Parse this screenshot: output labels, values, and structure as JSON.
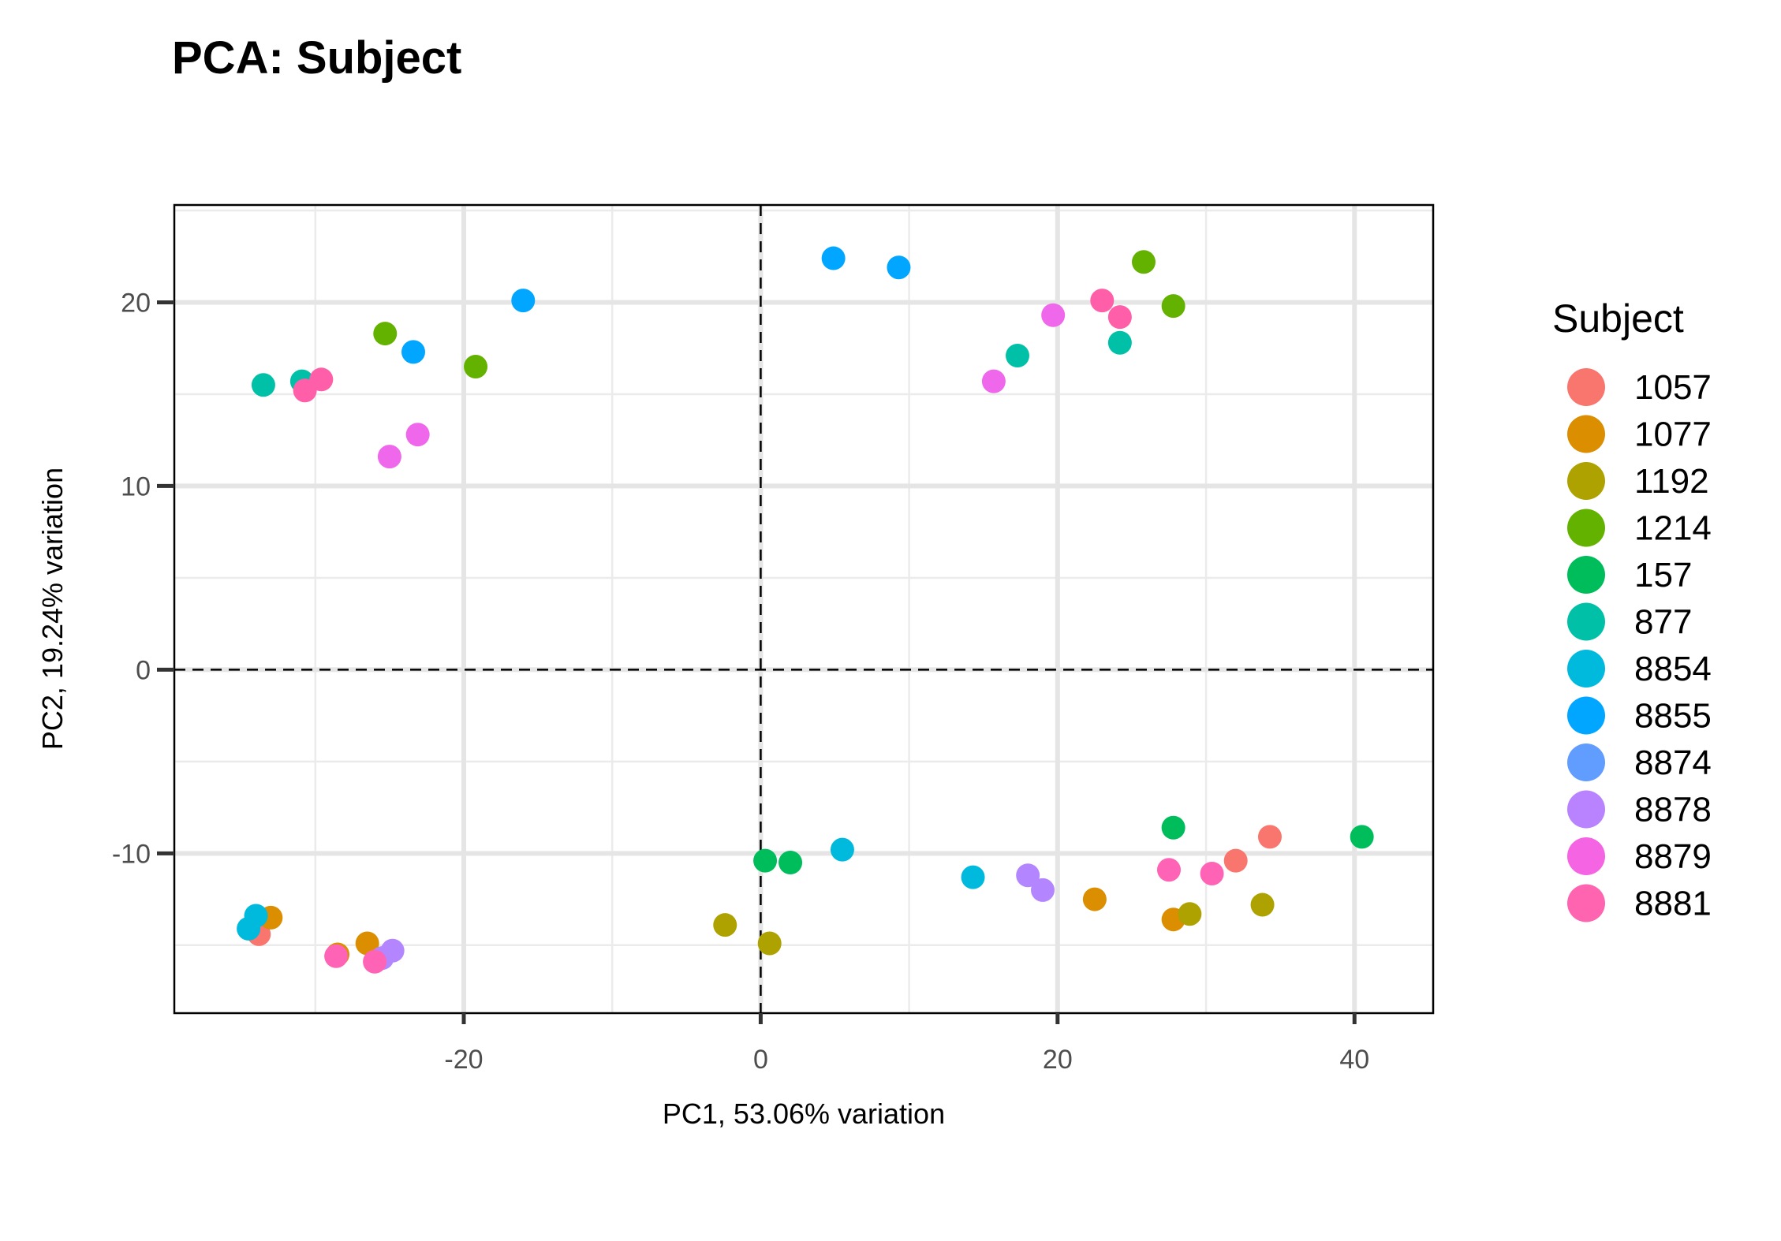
{
  "chart_data": {
    "type": "scatter",
    "title": "PCA: Subject",
    "xlabel": "PC1, 53.06% variation",
    "ylabel": "PC2, 19.24% variation",
    "xlim": [
      -39.5,
      45.3
    ],
    "ylim": [
      -18.7,
      25.3
    ],
    "xticks": [
      -20,
      0,
      20,
      40
    ],
    "yticks": [
      -10,
      0,
      10,
      20
    ],
    "xtick_labels": [
      "-20",
      "0",
      "20",
      "40"
    ],
    "ytick_labels": [
      "-10",
      "0",
      "10",
      "20"
    ],
    "grid": true,
    "reference_lines": {
      "x": 0,
      "y": 0,
      "style": "dashed"
    },
    "legend": {
      "title": "Subject",
      "position": "right"
    },
    "series": [
      {
        "name": "1057",
        "color": "#F8766D",
        "points": [
          [
            -33.8,
            -14.4
          ],
          [
            32.0,
            -10.4
          ],
          [
            34.3,
            -9.1
          ]
        ]
      },
      {
        "name": "1077",
        "color": "#DB8E00",
        "points": [
          [
            -33.0,
            -13.5
          ],
          [
            -28.5,
            -15.5
          ],
          [
            -26.5,
            -14.9
          ],
          [
            22.5,
            -12.5
          ],
          [
            27.8,
            -13.6
          ]
        ]
      },
      {
        "name": "1192",
        "color": "#AEA200",
        "points": [
          [
            -2.4,
            -13.9
          ],
          [
            0.6,
            -14.9
          ],
          [
            28.9,
            -13.3
          ],
          [
            33.8,
            -12.8
          ]
        ]
      },
      {
        "name": "1214",
        "color": "#64B200",
        "points": [
          [
            -25.3,
            18.3
          ],
          [
            -19.2,
            16.5
          ],
          [
            25.8,
            22.2
          ],
          [
            27.8,
            19.8
          ]
        ]
      },
      {
        "name": "157",
        "color": "#00BD5C",
        "points": [
          [
            0.3,
            -10.4
          ],
          [
            2.0,
            -10.5
          ],
          [
            27.8,
            -8.6
          ],
          [
            40.5,
            -9.1
          ]
        ]
      },
      {
        "name": "877",
        "color": "#00C1A7",
        "points": [
          [
            -33.5,
            15.5
          ],
          [
            -30.9,
            15.7
          ],
          [
            17.3,
            17.1
          ],
          [
            24.2,
            17.8
          ]
        ]
      },
      {
        "name": "8854",
        "color": "#00BADE",
        "points": [
          [
            -34.5,
            -14.1
          ],
          [
            -34.0,
            -13.4
          ],
          [
            5.5,
            -9.8
          ],
          [
            14.3,
            -11.3
          ]
        ]
      },
      {
        "name": "8855",
        "color": "#00A6FF",
        "points": [
          [
            -16.0,
            20.1
          ],
          [
            -23.4,
            17.3
          ],
          [
            4.9,
            22.4
          ],
          [
            9.3,
            21.9
          ]
        ]
      },
      {
        "name": "8874",
        "color": "#B385FF",
        "points": [
          [
            -25.5,
            -15.7
          ],
          [
            -24.8,
            -15.3
          ],
          [
            18.0,
            -11.2
          ],
          [
            19.0,
            -12.0
          ]
        ]
      },
      {
        "name": "8878",
        "color": "#EF67EB",
        "points": [
          [
            -25.0,
            11.6
          ],
          [
            -23.1,
            12.8
          ],
          [
            15.7,
            15.7
          ],
          [
            19.7,
            19.3
          ]
        ]
      },
      {
        "name": "8879",
        "color": "#FF63B6",
        "points": [
          [
            -28.6,
            -15.6
          ],
          [
            -26.0,
            -15.9
          ],
          [
            27.5,
            -10.9
          ],
          [
            30.4,
            -11.1
          ]
        ]
      },
      {
        "name": "8881",
        "color": "#FF5FA8",
        "points": [
          [
            -30.7,
            15.2
          ],
          [
            -29.6,
            15.8
          ],
          [
            23.0,
            20.1
          ],
          [
            24.2,
            19.2
          ]
        ]
      }
    ]
  },
  "legend_display_colors": [
    "#F8766D",
    "#DB8E00",
    "#AEA200",
    "#64B200",
    "#00BD5C",
    "#00C1A7",
    "#00BADE",
    "#00A6FF",
    "#619CFF",
    "#B983FF",
    "#F564E3",
    "#FF64B0"
  ]
}
